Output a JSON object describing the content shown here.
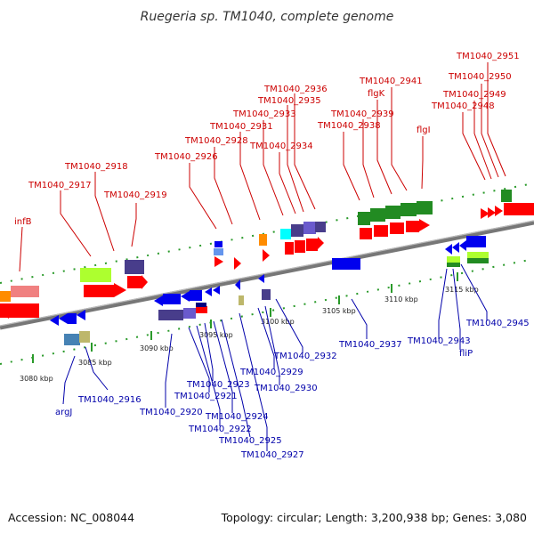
{
  "title": "Ruegeria sp. TM1040, complete genome",
  "footer": {
    "accession": "Accession: NC_008044",
    "summary": "Topology: circular; Length: 3,200,938 bp; Genes: 3,080"
  },
  "colors": {
    "forward_label": "#cc0000",
    "reverse_label": "#0000aa",
    "backbone": "#888888",
    "tick": "#2a9a2a",
    "forward_gene": "#ff0000",
    "reverse_gene": "#0000ee"
  },
  "kbp_labels": [
    "3080 kbp",
    "3085 kbp",
    "3090 kbp",
    "3095 kbp",
    "3100 kbp",
    "3105 kbp",
    "3110 kbp",
    "3115 kbp"
  ],
  "forward_labels": [
    "infB",
    "TM1040_2917",
    "TM1040_2918",
    "TM1040_2919",
    "TM1040_2926",
    "TM1040_2928",
    "TM1040_2931",
    "TM1040_2933",
    "TM1040_2934",
    "TM1040_2935",
    "TM1040_2936",
    "TM1040_2938",
    "TM1040_2939",
    "flgK",
    "TM1040_2941",
    "flgI",
    "TM1040_2948",
    "TM1040_2949",
    "TM1040_2950",
    "TM1040_2951"
  ],
  "reverse_labels": [
    "argJ",
    "TM1040_2916",
    "TM1040_2920",
    "TM1040_2921",
    "TM1040_2922",
    "TM1040_2923",
    "TM1040_2924",
    "TM1040_2925",
    "TM1040_2927",
    "TM1040_2929",
    "TM1040_2930",
    "TM1040_2932",
    "TM1040_2937",
    "TM1040_2943",
    "fliP",
    "TM1040_2945"
  ]
}
